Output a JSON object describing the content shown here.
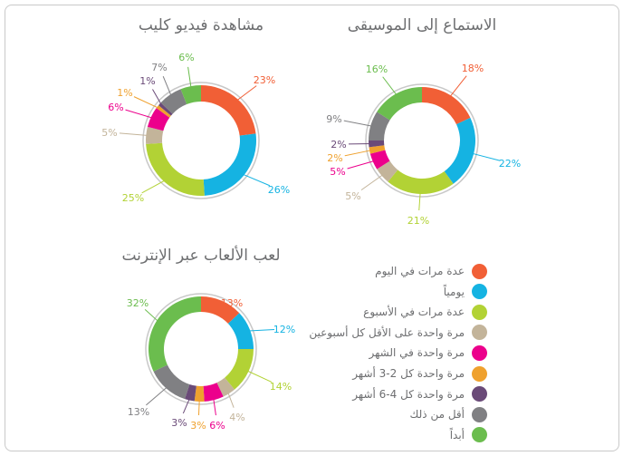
{
  "legend": [
    {
      "label": "عدة مرات في اليوم",
      "color": "#f15f36"
    },
    {
      "label": "يومياً",
      "color": "#15b3e2"
    },
    {
      "label": "عدة مرات في الأسبوع",
      "color": "#b2d235"
    },
    {
      "label": "مرة واحدة على الأقل كل أسبوعين",
      "color": "#c3b49a"
    },
    {
      "label": "مرة واحدة في الشهر",
      "color": "#ec008c"
    },
    {
      "label": "مرة واحدة كل 2-3 أشهر",
      "color": "#efa12e"
    },
    {
      "label": "مرة واحدة كل 4-6 أشهر",
      "color": "#6a4a78"
    },
    {
      "label": "أقل من ذلك",
      "color": "#808083"
    },
    {
      "label": "أبداً",
      "color": "#6bbd4e"
    }
  ],
  "chart_data": [
    {
      "type": "pie",
      "title": "الاستماع إلى الموسيقى",
      "values": [
        18,
        22,
        21,
        5,
        5,
        2,
        2,
        9,
        16
      ],
      "labels": [
        "18%",
        "22%",
        "21%",
        "5%",
        "5%",
        "2%",
        "2%",
        "9%",
        "16%"
      ]
    },
    {
      "type": "pie",
      "title": "مشاهدة فيديو كليب",
      "values": [
        23,
        26,
        25,
        5,
        6,
        1,
        1,
        7,
        6
      ],
      "labels": [
        "23%",
        "26%",
        "25%",
        "5%",
        "6%",
        "1%",
        "1%",
        "7%",
        "6%"
      ]
    },
    {
      "type": "pie",
      "title": "لعب الألعاب عبر الإنترنت",
      "values": [
        13,
        12,
        14,
        4,
        6,
        3,
        3,
        13,
        32
      ],
      "labels": [
        "13%",
        "12%",
        "14%",
        "4%",
        "6%",
        "3%",
        "3%",
        "13%",
        "32%"
      ]
    }
  ]
}
